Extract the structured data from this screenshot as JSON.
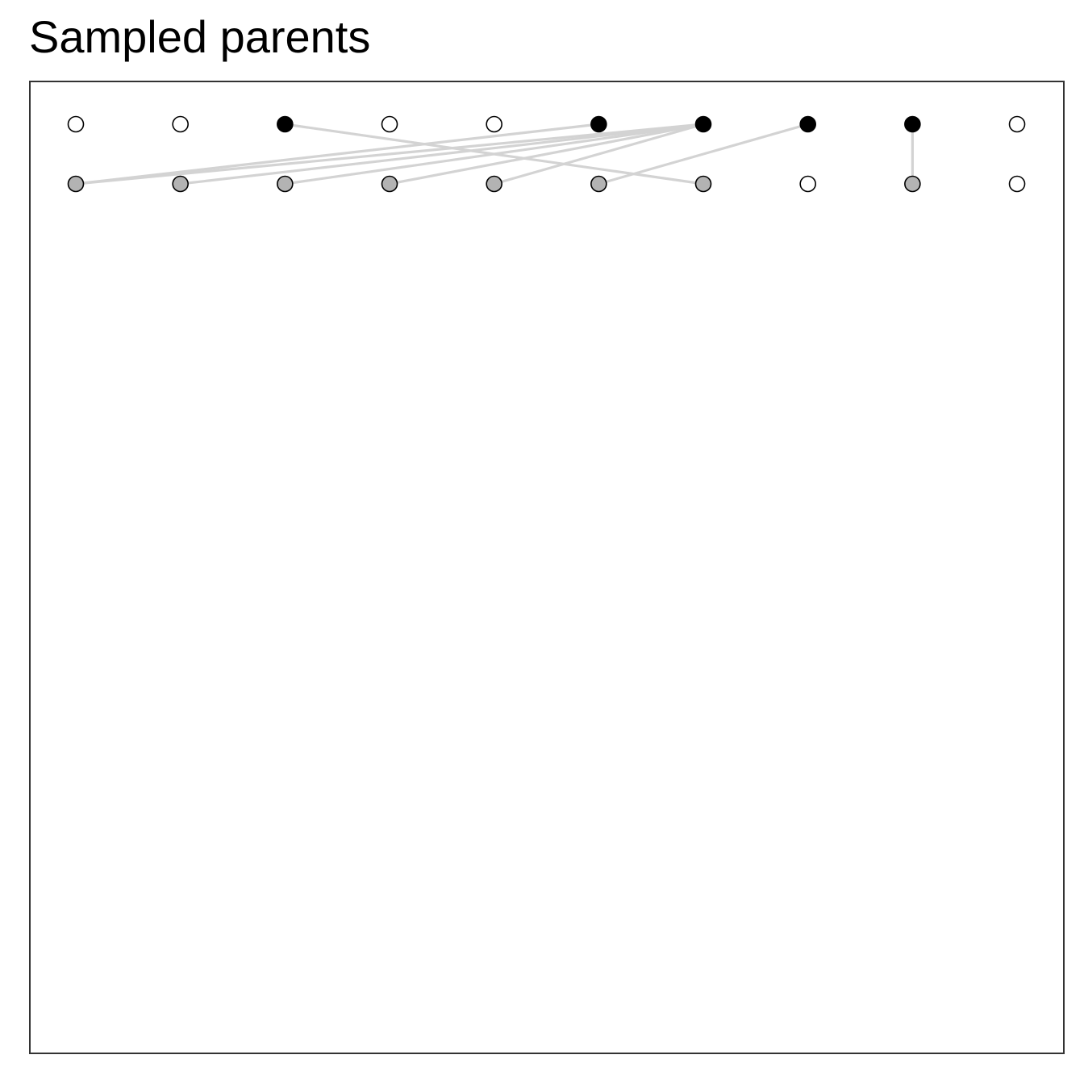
{
  "title": "Sampled parents",
  "colors": {
    "parent_selected": "#000000",
    "parent_unselected": "#ffffff",
    "child": "#b3b3b3",
    "child_unsampled": "#ffffff",
    "edge": "#d3d3d3",
    "node_stroke": "#000000",
    "panel_border": "#333333"
  },
  "diagram": {
    "columns": 10,
    "parent_row": {
      "selected": [
        false,
        false,
        true,
        false,
        false,
        true,
        true,
        true,
        true,
        false
      ]
    },
    "child_row": {
      "sampled": [
        true,
        true,
        true,
        true,
        true,
        true,
        true,
        false,
        true,
        false
      ]
    },
    "edges": [
      {
        "parent": 3,
        "child": 7
      },
      {
        "parent": 6,
        "child": 1
      },
      {
        "parent": 7,
        "child": 1
      },
      {
        "parent": 7,
        "child": 2
      },
      {
        "parent": 7,
        "child": 3
      },
      {
        "parent": 7,
        "child": 4
      },
      {
        "parent": 7,
        "child": 5
      },
      {
        "parent": 8,
        "child": 6
      },
      {
        "parent": 9,
        "child": 9
      }
    ]
  }
}
